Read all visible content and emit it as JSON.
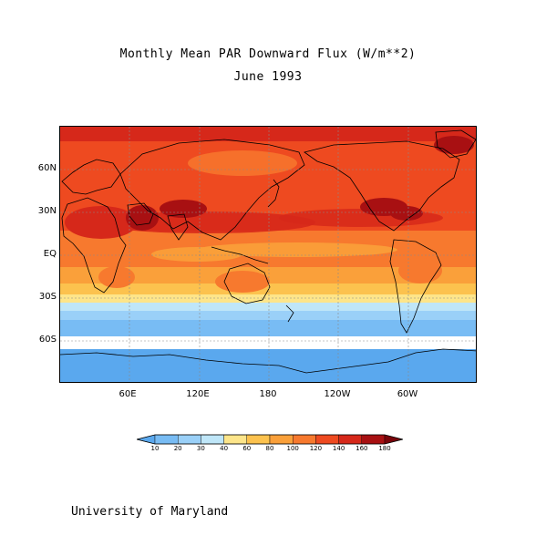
{
  "title": "Monthly Mean PAR Downward Flux (W/m**2)",
  "subtitle": "June 1993",
  "footer": "University of Maryland",
  "lat_labels": [
    "60N",
    "30N",
    "EQ",
    "30S",
    "60S"
  ],
  "lon_labels": [
    "60E",
    "120E",
    "180",
    "120W",
    "60W"
  ],
  "colorbar": {
    "levels": [
      "10",
      "20",
      "30",
      "40",
      "60",
      "80",
      "100",
      "120",
      "140",
      "160",
      "180"
    ],
    "colors": [
      "#5aa8ee",
      "#78bcf4",
      "#9ad0f8",
      "#bfe6f8",
      "#fde58a",
      "#fcc24e",
      "#faa03a",
      "#f7792e",
      "#ee4a20",
      "#d6281a",
      "#a81012",
      "#78040a"
    ]
  },
  "colors": {
    "land_outline": "#000000",
    "missing_band": "#ffffff",
    "grid_line": "#8a8a8a"
  }
}
